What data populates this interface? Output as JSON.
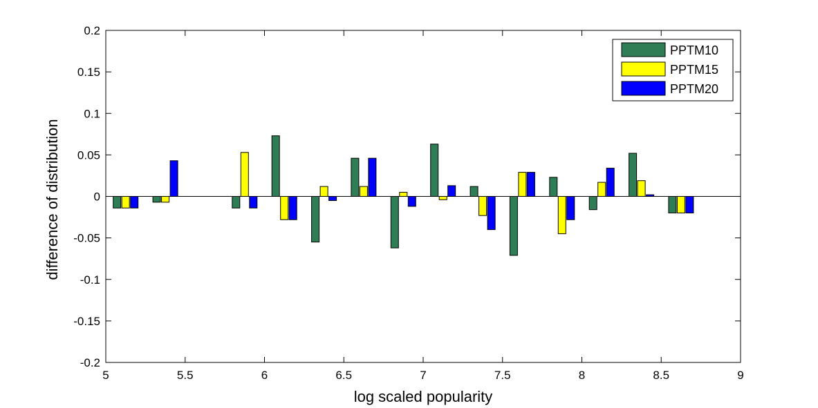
{
  "chart_data": {
    "type": "bar",
    "xlabel": "log scaled popularity",
    "ylabel": "difference of distribution",
    "xlim": [
      5,
      9
    ],
    "ylim": [
      -0.2,
      0.2
    ],
    "x_ticks": [
      "5",
      "5.5",
      "6",
      "6.5",
      "7",
      "7.5",
      "8",
      "8.5",
      "9"
    ],
    "y_ticks": [
      "-0.2",
      "-0.15",
      "-0.1",
      "-0.05",
      "0",
      "0.05",
      "0.1",
      "0.15",
      "0.2"
    ],
    "grid": false,
    "legend_position": "top-right",
    "x": [
      5.125,
      5.375,
      5.625,
      5.875,
      6.125,
      6.375,
      6.625,
      6.875,
      7.125,
      7.375,
      7.625,
      7.875,
      8.125,
      8.375,
      8.625
    ],
    "series": [
      {
        "name": "PPTM10",
        "color": "#2e7d55",
        "values": [
          -0.014,
          -0.007,
          0,
          -0.014,
          0.073,
          -0.055,
          0.046,
          -0.062,
          0.063,
          0.012,
          -0.071,
          0.023,
          -0.016,
          0.052,
          -0.02
        ]
      },
      {
        "name": "PPTM15",
        "color": "#ffff00",
        "values": [
          -0.014,
          -0.007,
          0,
          0.053,
          -0.028,
          0.012,
          0.012,
          0.005,
          -0.004,
          -0.023,
          0.029,
          -0.045,
          0.017,
          0.019,
          -0.02
        ]
      },
      {
        "name": "PPTM20",
        "color": "#0000ff",
        "values": [
          -0.014,
          0.043,
          0,
          -0.014,
          -0.028,
          -0.005,
          0.046,
          -0.012,
          0.013,
          -0.04,
          0.029,
          -0.028,
          0.034,
          0.002,
          -0.02
        ]
      }
    ]
  }
}
